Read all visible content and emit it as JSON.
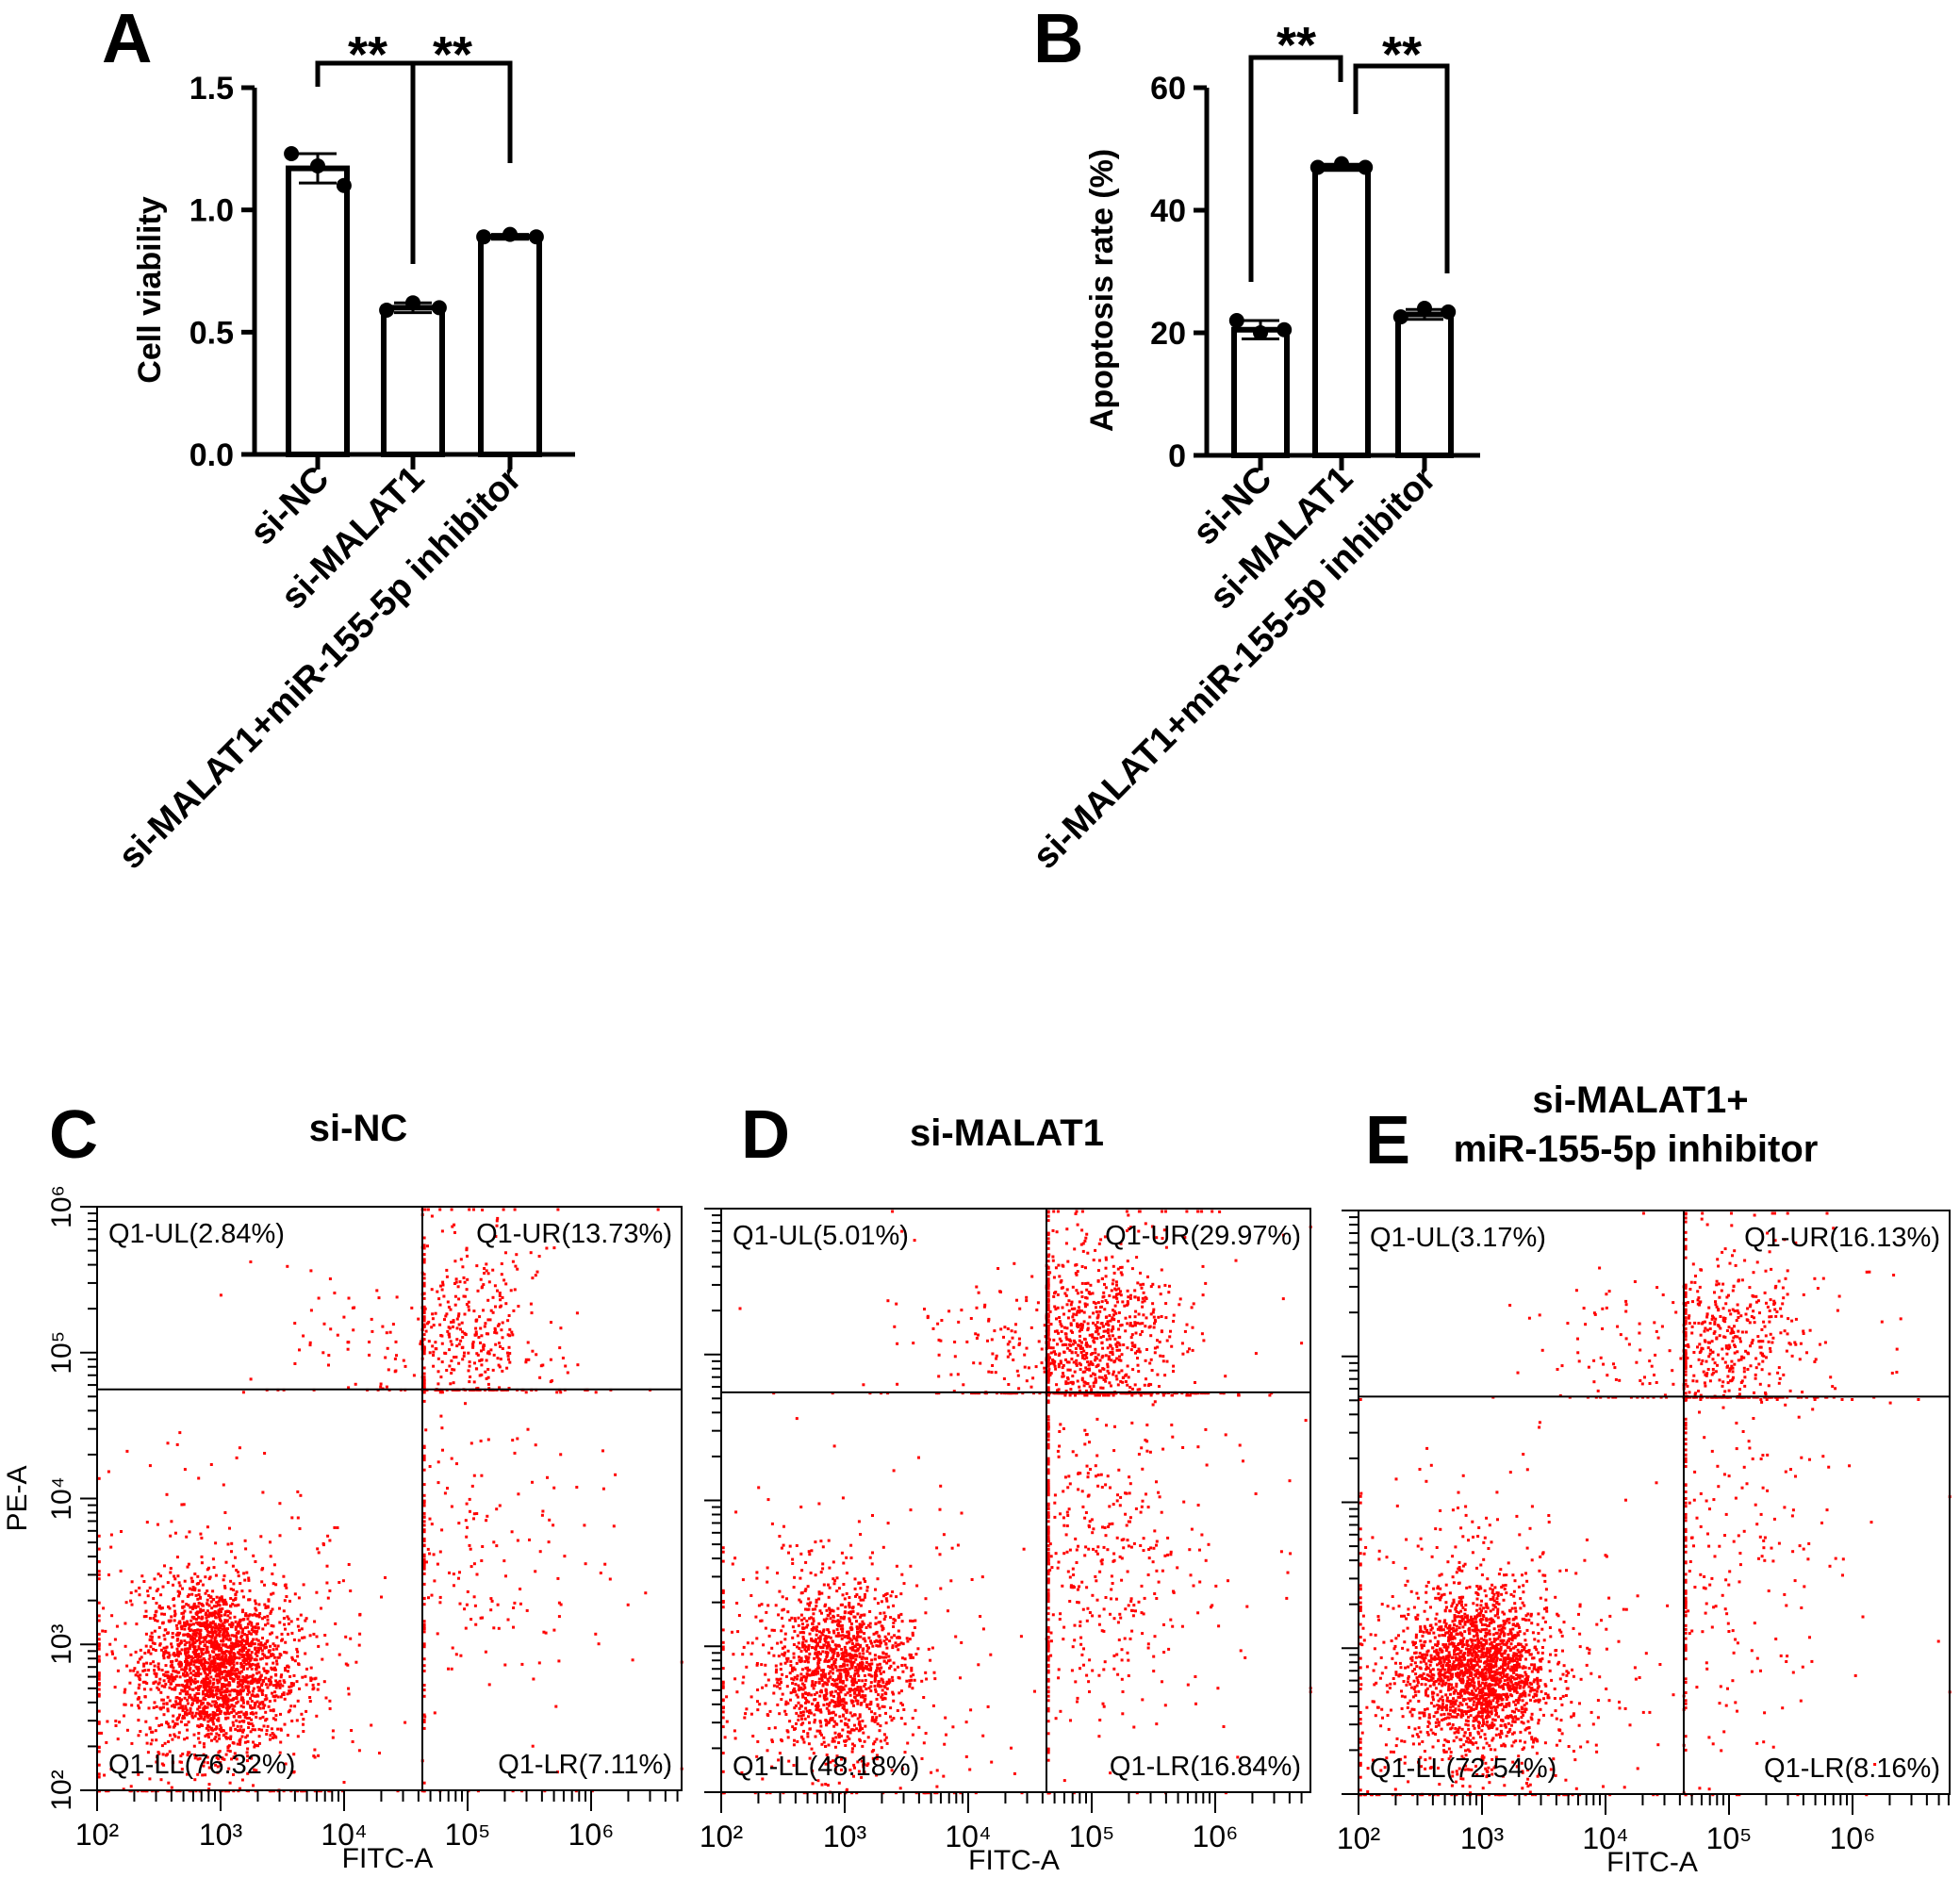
{
  "panels": {
    "A": "A",
    "B": "B",
    "C": "C",
    "D": "D",
    "E": "E"
  },
  "chart_data": [
    {
      "type": "bar",
      "panel": "A",
      "ylabel": "Cell viability",
      "ylim": [
        0,
        1.5
      ],
      "yticks": [
        "0.0",
        "0.5",
        "1.0",
        "1.5"
      ],
      "categories": [
        "si-NC",
        "si-MALAT1",
        "si-MALAT1+miR-155-5p inhibitor"
      ],
      "values": [
        1.17,
        0.6,
        0.89
      ],
      "errors": [
        0.06,
        0.02,
        0.01
      ],
      "points": [
        [
          1.23,
          1.18,
          1.1
        ],
        [
          0.59,
          0.62,
          0.6
        ],
        [
          0.89,
          0.9,
          0.89
        ]
      ],
      "significance": [
        {
          "label": "**",
          "from": 0,
          "to": 1
        },
        {
          "label": "**",
          "from": 0,
          "to": 2
        }
      ]
    },
    {
      "type": "bar",
      "panel": "B",
      "ylabel": "Apoptosis rate (%)",
      "ylim": [
        0,
        60
      ],
      "yticks": [
        "0",
        "20",
        "40",
        "60"
      ],
      "categories": [
        "si-NC",
        "si-MALAT1",
        "si-MALAT1+miR-155-5p inhibitor"
      ],
      "values": [
        20.5,
        47.0,
        23.0
      ],
      "errors": [
        1.5,
        0.5,
        0.8
      ],
      "points": [
        [
          22.0,
          20.0,
          20.5
        ],
        [
          47.0,
          47.6,
          47.0
        ],
        [
          22.6,
          24.0,
          23.4
        ]
      ],
      "significance": [
        {
          "label": "**",
          "from": 0,
          "to": 1
        },
        {
          "label": "**",
          "from": 1,
          "to": 2
        }
      ]
    },
    {
      "type": "scatter",
      "panel": "C",
      "title": "si-NC",
      "xlabel": "FITC-A",
      "ylabel": "PE-A",
      "x_scale": "log",
      "y_scale": "log",
      "xticks": [
        "10²",
        "10³",
        "10⁴",
        "10⁵",
        "10⁶"
      ],
      "yticks": [
        "10²",
        "10³",
        "10⁴",
        "10⁵",
        "10⁶"
      ],
      "gate": {
        "fitc": 43000,
        "pe": 56000
      },
      "quadrants": {
        "UL": "Q1-UL(2.84%)",
        "UR": "Q1-UR(13.73%)",
        "LL": "Q1-LL(76.32%)",
        "LR": "Q1-LR(7.11%)"
      },
      "percent": {
        "UL": 2.84,
        "UR": 13.73,
        "LL": 76.32,
        "LR": 7.11
      },
      "point_color": "#ff0000"
    },
    {
      "type": "scatter",
      "panel": "D",
      "title": "si-MALAT1",
      "xlabel": "FITC-A",
      "ylabel": "",
      "x_scale": "log",
      "y_scale": "log",
      "xticks": [
        "10²",
        "10³",
        "10⁴",
        "10⁵",
        "10⁶"
      ],
      "yticks": [],
      "gate": {
        "fitc": 43000,
        "pe": 55000
      },
      "quadrants": {
        "UL": "Q1-UL(5.01%)",
        "UR": "Q1-UR(29.97%)",
        "LL": "Q1-LL(48.18%)",
        "LR": "Q1-LR(16.84%)"
      },
      "percent": {
        "UL": 5.01,
        "UR": 29.97,
        "LL": 48.18,
        "LR": 16.84
      },
      "point_color": "#ff0000"
    },
    {
      "type": "scatter",
      "panel": "E",
      "title": "si-MALAT1+\nmiR-155-5p inhibitor",
      "xlabel": "FITC-A",
      "ylabel": "",
      "x_scale": "log",
      "y_scale": "log",
      "xticks": [
        "10²",
        "10³",
        "10⁴",
        "10⁵",
        "10⁶"
      ],
      "yticks": [],
      "gate": {
        "fitc": 43000,
        "pe": 53000
      },
      "quadrants": {
        "UL": "Q1-UL(3.17%)",
        "UR": "Q1-UR(16.13%)",
        "LL": "Q1-LL(72.54%)",
        "LR": "Q1-LR(8.16%)"
      },
      "percent": {
        "UL": 3.17,
        "UR": 16.13,
        "LL": 72.54,
        "LR": 8.16
      },
      "point_color": "#ff0000"
    }
  ]
}
